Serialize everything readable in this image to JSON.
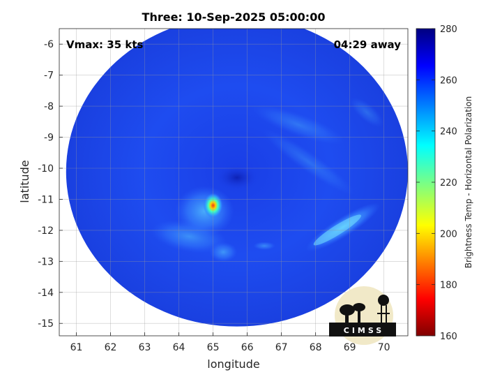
{
  "chart_data": {
    "type": "heatmap",
    "title": "Three: 10-Sep-2025 05:00:00",
    "xlabel": "longitude",
    "ylabel": "latitude",
    "xlim": [
      60.5,
      70.7
    ],
    "ylim": [
      -15.4,
      -5.5
    ],
    "xticks": [
      61,
      62,
      63,
      64,
      65,
      66,
      67,
      68,
      69,
      70
    ],
    "yticks": [
      -6,
      -7,
      -8,
      -9,
      -10,
      -11,
      -12,
      -13,
      -14,
      -15
    ],
    "grid": true,
    "colorbar": {
      "label": "Brightness Temp - Horizontal Polarization",
      "range": [
        160,
        280
      ],
      "ticks": [
        160,
        180,
        200,
        220,
        240,
        260,
        280
      ],
      "colormap": "jet"
    },
    "annotations": {
      "left": "Vmax: 35 kts",
      "right": "04:29 away"
    },
    "swath": {
      "center": [
        65.7,
        -10.1
      ],
      "radius_deg": 5.0
    },
    "features": [
      {
        "name": "convective core",
        "lon": 65.0,
        "lat": -11.2,
        "value": 195
      },
      {
        "name": "convective band",
        "lon": 68.8,
        "lat": -11.9,
        "value": 245
      }
    ],
    "background_value": 262
  },
  "logo": {
    "text": "CIMSS"
  }
}
